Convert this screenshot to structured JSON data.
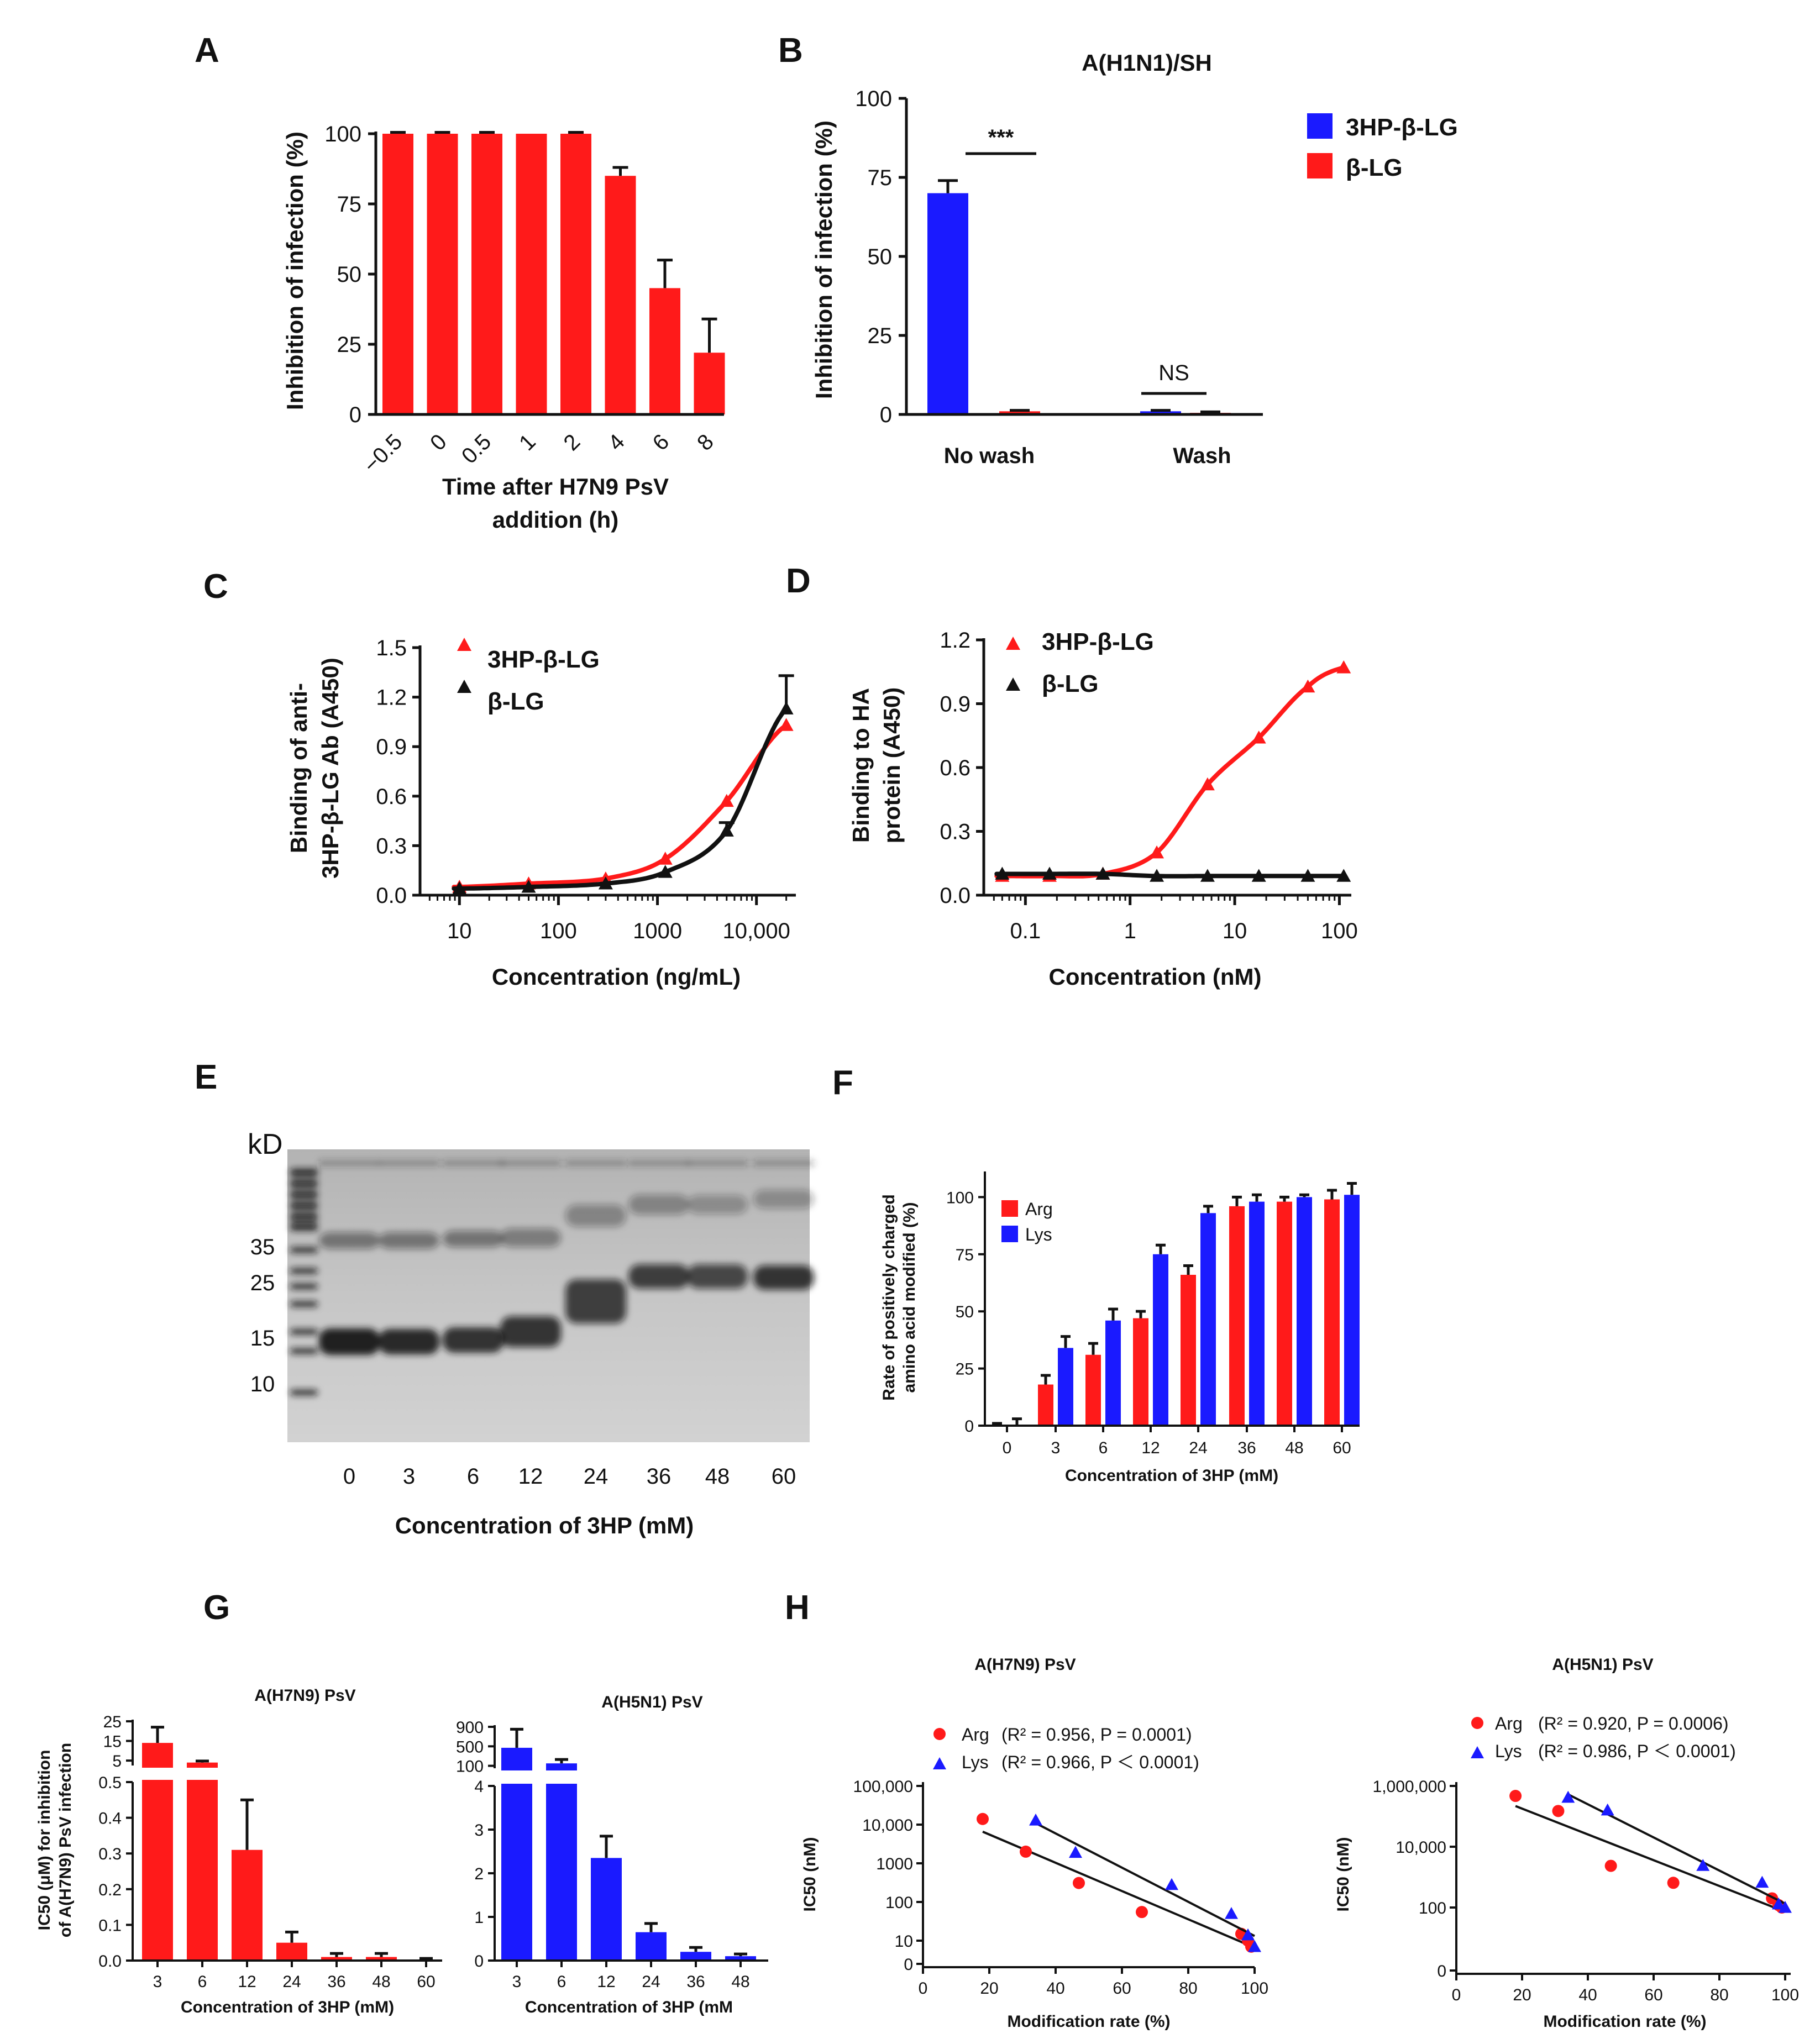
{
  "panel_labels": [
    "A",
    "B",
    "C",
    "D",
    "E",
    "F",
    "G",
    "H"
  ],
  "colors": {
    "red": "#ff1a1a",
    "blue": "#1a1aff",
    "black": "#111111"
  },
  "chart_data": [
    {
      "id": "A",
      "type": "bar",
      "categories": [
        "−0.5",
        "0",
        "0.5",
        "1",
        "2",
        "4",
        "6",
        "8"
      ],
      "values": [
        100,
        100,
        100,
        100,
        100,
        85,
        45,
        22
      ],
      "errors": [
        0.5,
        0.5,
        0.5,
        0,
        0.5,
        3,
        10,
        12
      ],
      "ylabel": "Inhibition of infection (%)",
      "xlabel_lines": [
        "Time after H7N9 PsV",
        "addition (h)"
      ],
      "ylim": [
        0,
        100
      ],
      "yticks": [
        "0",
        "25",
        "50",
        "75",
        "100"
      ],
      "color": "red"
    },
    {
      "id": "B",
      "type": "bar",
      "title": "A(H1N1)/SH",
      "categories": [
        "No wash",
        "Wash"
      ],
      "series": [
        {
          "name": "3HP-β-LG",
          "values": [
            70,
            1
          ],
          "errors": [
            4,
            0.3
          ],
          "color": "blue"
        },
        {
          "name": "β-LG",
          "values": [
            1,
            0.5
          ],
          "errors": [
            0.3,
            0.3
          ],
          "color": "red"
        }
      ],
      "ylabel": "Inhibition of infection (%)",
      "ylim": [
        0,
        100
      ],
      "yticks": [
        "0",
        "25",
        "50",
        "75",
        "100"
      ],
      "annotations": [
        "***",
        "NS"
      ]
    },
    {
      "id": "C",
      "type": "line",
      "xscale": "log",
      "xlabel": "Concentration (ng/mL)",
      "ylabel_lines": [
        "Binding of anti-",
        "3HP-β-LG Ab (A450)"
      ],
      "xticks": [
        10,
        100,
        1000,
        10000
      ],
      "xtick_labels": [
        "10",
        "100",
        "1000",
        "10,000"
      ],
      "xlim": [
        4,
        25000
      ],
      "yticks": [
        "0.0",
        "0.3",
        "0.6",
        "0.9",
        "1.2",
        "1.5"
      ],
      "ylim": [
        0,
        1.5
      ],
      "series": [
        {
          "name": "3HP-β-LG",
          "color": "red",
          "x": [
            10,
            50,
            300,
            1200,
            5000,
            20000
          ],
          "y": [
            0.05,
            0.07,
            0.1,
            0.22,
            0.57,
            1.03
          ]
        },
        {
          "name": "β-LG",
          "color": "black",
          "x": [
            10,
            50,
            300,
            1200,
            5000,
            20000
          ],
          "y": [
            0.04,
            0.05,
            0.07,
            0.14,
            0.39,
            1.13
          ],
          "errors": [
            0,
            0,
            0,
            0,
            0.05,
            0.2
          ]
        }
      ]
    },
    {
      "id": "D",
      "type": "line",
      "xscale": "log",
      "xlabel": "Concentration (nM)",
      "ylabel_lines": [
        "Binding to HA",
        "protein (A450)"
      ],
      "xticks": [
        0.1,
        1,
        10,
        100
      ],
      "xtick_labels": [
        "0.1",
        "1",
        "10",
        "100"
      ],
      "xlim": [
        0.04,
        130
      ],
      "yticks": [
        "0.0",
        "0.3",
        "0.6",
        "0.9",
        "1.2"
      ],
      "ylim": [
        0,
        1.2
      ],
      "series": [
        {
          "name": "3HP-β-LG",
          "color": "red",
          "x": [
            0.06,
            0.17,
            0.55,
            1.8,
            5.5,
            17,
            50,
            110
          ],
          "y": [
            0.09,
            0.09,
            0.1,
            0.2,
            0.52,
            0.74,
            0.98,
            1.07
          ]
        },
        {
          "name": "β-LG",
          "color": "black",
          "x": [
            0.06,
            0.17,
            0.55,
            1.8,
            5.5,
            17,
            50,
            110
          ],
          "y": [
            0.1,
            0.1,
            0.1,
            0.09,
            0.09,
            0.09,
            0.09,
            0.09
          ]
        }
      ]
    },
    {
      "id": "F",
      "type": "bar",
      "categories": [
        "0",
        "3",
        "6",
        "12",
        "24",
        "36",
        "48",
        "60"
      ],
      "series": [
        {
          "name": "Arg",
          "color": "red",
          "values": [
            0,
            18,
            31,
            47,
            66,
            96,
            98,
            99
          ],
          "errors": [
            1,
            4,
            5,
            3,
            4,
            4,
            2,
            4
          ]
        },
        {
          "name": "Lys",
          "color": "blue",
          "values": [
            0,
            34,
            46,
            75,
            93,
            98,
            100,
            101
          ],
          "errors": [
            3,
            5,
            5,
            4,
            3,
            3,
            1,
            5
          ]
        }
      ],
      "ylabel_lines": [
        "Rate of positively charged",
        "amino acid modified (%)"
      ],
      "xlabel": "Concentration of 3HP (mM)",
      "ylim": [
        0,
        110
      ],
      "yticks": [
        "0",
        "25",
        "50",
        "75",
        "100"
      ]
    },
    {
      "id": "G1",
      "type": "bar",
      "title": "A(H7N9) PsV",
      "broken_axis": true,
      "categories": [
        "3",
        "6",
        "12",
        "24",
        "36",
        "48",
        "60"
      ],
      "values": [
        14,
        4,
        0.31,
        0.05,
        0.01,
        0.01,
        0.003
      ],
      "errors": [
        8,
        0.8,
        0.14,
        0.03,
        0.01,
        0.01,
        0.003
      ],
      "color": "red",
      "xlabel": "Concentration of 3HP (mM)",
      "ylabel_lines": [
        "IC50 (μM) for inhibition",
        "of A(H7N9) PsV infection"
      ],
      "yticks_low": [
        "0.0",
        "0.1",
        "0.2",
        "0.3",
        "0.4",
        "0.5"
      ],
      "yticks_high": [
        "5",
        "15",
        "25"
      ]
    },
    {
      "id": "G2",
      "type": "bar",
      "title": "A(H5N1) PsV",
      "broken_axis": true,
      "categories": [
        "3",
        "6",
        "12",
        "24",
        "36",
        "48"
      ],
      "values": [
        470,
        150,
        2.35,
        0.65,
        0.2,
        0.1
      ],
      "errors": [
        380,
        80,
        0.5,
        0.2,
        0.1,
        0.05
      ],
      "color": "blue",
      "xlabel": "Concentration of 3HP (mM",
      "yticks_low": [
        "0",
        "1",
        "2",
        "3",
        "4"
      ],
      "yticks_high": [
        "100",
        "500",
        "900"
      ]
    },
    {
      "id": "H1",
      "type": "scatter",
      "title": "A(H7N9) PsV",
      "yscale": "log",
      "xlabel": "Modification rate (%)",
      "ylabel": "IC50 (nM)",
      "xticks": [
        "0",
        "20",
        "40",
        "60",
        "80",
        "100"
      ],
      "xlim": [
        0,
        100
      ],
      "ytick_labels": [
        "0",
        "10",
        "100",
        "1000",
        "10,000",
        "100,000"
      ],
      "series": [
        {
          "name": "Arg",
          "color": "red",
          "stat": "(R² = 0.956, P = 0.0001)",
          "x": [
            18,
            31,
            47,
            66,
            96,
            98,
            99
          ],
          "y": [
            14000,
            2000,
            310,
            55,
            15,
            10,
            7
          ]
        },
        {
          "name": "Lys",
          "color": "blue",
          "stat": "(R² = 0.966, P ＜ 0.0001)",
          "x": [
            34,
            46,
            75,
            93,
            98,
            100
          ],
          "y": [
            13000,
            1900,
            280,
            50,
            14,
            7
          ]
        }
      ]
    },
    {
      "id": "H2",
      "type": "scatter",
      "title": "A(H5N1) PsV",
      "yscale": "log",
      "xlabel": "Modification rate (%)",
      "ylabel": "IC50 (nM)",
      "xticks": [
        "0",
        "20",
        "40",
        "60",
        "80",
        "100"
      ],
      "xlim": [
        0,
        100
      ],
      "ytick_labels": [
        "0",
        "100",
        "10,000",
        "1,000,000"
      ],
      "series": [
        {
          "name": "Arg",
          "color": "red",
          "stat": "(R² = 0.920, P = 0.0006)",
          "x": [
            18,
            31,
            47,
            66,
            96,
            98,
            99
          ],
          "y": [
            470000,
            150000,
            2350,
            650,
            200,
            120,
            100
          ]
        },
        {
          "name": "Lys",
          "color": "blue",
          "stat": "(R² = 0.986, P ＜ 0.0001)",
          "x": [
            34,
            46,
            75,
            93,
            98,
            100
          ],
          "y": [
            420000,
            160000,
            2400,
            670,
            130,
            100
          ]
        }
      ]
    }
  ],
  "gel": {
    "unit": "kD",
    "markers": [
      "35",
      "25",
      "15",
      "10"
    ],
    "lanes": [
      "0",
      "3",
      "6",
      "12",
      "24",
      "36",
      "48",
      "60"
    ],
    "xlabel": "Concentration of 3HP (mM)"
  }
}
